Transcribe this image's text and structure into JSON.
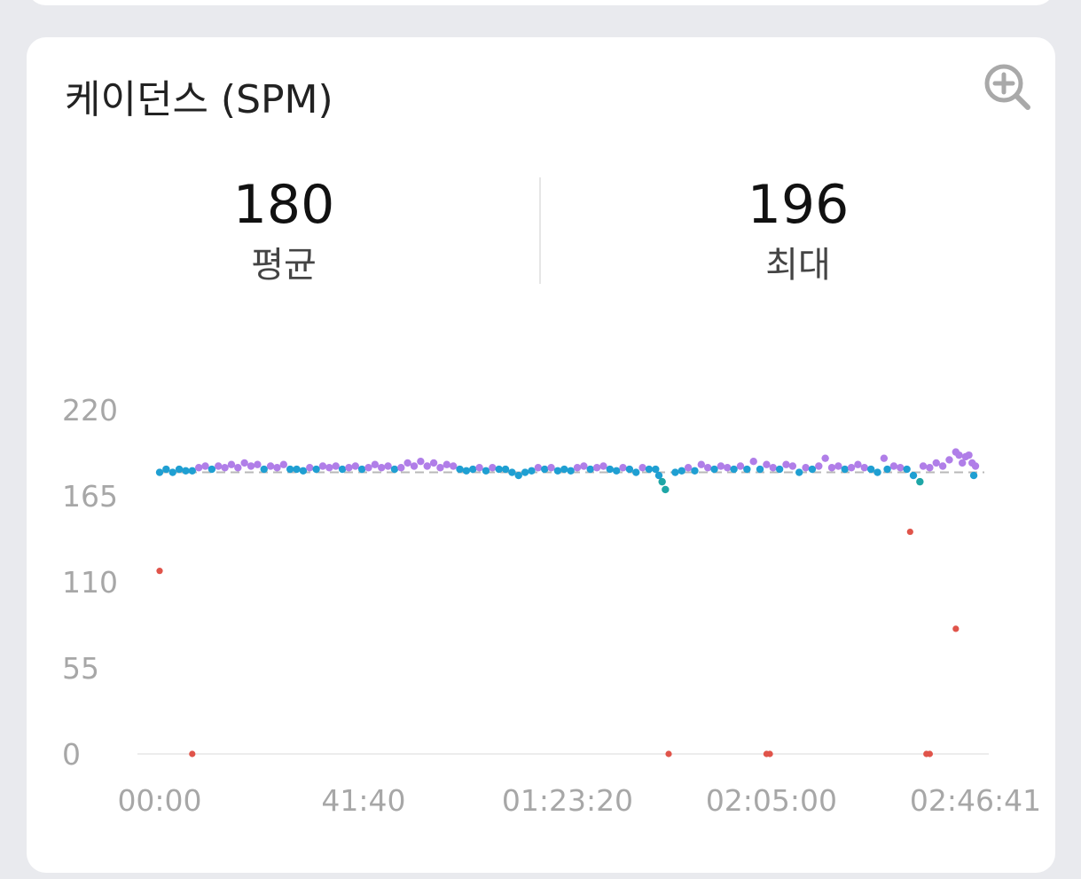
{
  "card": {
    "title": "케이던스 (SPM)",
    "zoom_icon": "zoom-in-icon"
  },
  "stats": {
    "average_value": "180",
    "average_label": "평균",
    "max_value": "196",
    "max_label": "최대"
  },
  "colors": {
    "purple": "#b07ee8",
    "teal": "#1ea6a6",
    "blue": "#1f9fd2",
    "red": "#e0544a",
    "avg_line": "#b8b8b8",
    "axis": "#a7a7a7"
  },
  "chart_data": {
    "type": "scatter",
    "x_tick_labels": [
      "00:00",
      "41:40",
      "01:23:20",
      "02:05:00",
      "02:46:41"
    ],
    "x_tick_seconds": [
      0,
      2500,
      5000,
      7500,
      10001
    ],
    "y_tick_labels": [
      "220",
      "165",
      "110",
      "55",
      "0"
    ],
    "y_ticks": [
      220,
      165,
      110,
      55,
      0
    ],
    "ylim": [
      0,
      220
    ],
    "xlim_seconds": [
      0,
      10001
    ],
    "average_line": 180,
    "grid": false,
    "outliers": [
      {
        "t": 0,
        "v": 117
      },
      {
        "t": 400,
        "v": 0
      },
      {
        "t": 6240,
        "v": 0
      },
      {
        "t": 7440,
        "v": 0
      },
      {
        "t": 7480,
        "v": 0
      },
      {
        "t": 9200,
        "v": 142
      },
      {
        "t": 9400,
        "v": 0
      },
      {
        "t": 9440,
        "v": 0
      },
      {
        "t": 9760,
        "v": 80
      }
    ],
    "main_series_summary": "dense points near 178-190 SPM across the whole run",
    "main_points": [
      {
        "t": 0,
        "v": 180
      },
      {
        "t": 80,
        "v": 182
      },
      {
        "t": 160,
        "v": 180
      },
      {
        "t": 240,
        "v": 182
      },
      {
        "t": 320,
        "v": 181
      },
      {
        "t": 400,
        "v": 181
      },
      {
        "t": 480,
        "v": 183
      },
      {
        "t": 560,
        "v": 184
      },
      {
        "t": 640,
        "v": 182
      },
      {
        "t": 720,
        "v": 184
      },
      {
        "t": 800,
        "v": 183
      },
      {
        "t": 880,
        "v": 185
      },
      {
        "t": 960,
        "v": 183
      },
      {
        "t": 1040,
        "v": 186
      },
      {
        "t": 1120,
        "v": 184
      },
      {
        "t": 1200,
        "v": 185
      },
      {
        "t": 1280,
        "v": 182
      },
      {
        "t": 1360,
        "v": 184
      },
      {
        "t": 1440,
        "v": 183
      },
      {
        "t": 1520,
        "v": 185
      },
      {
        "t": 1600,
        "v": 182
      },
      {
        "t": 1680,
        "v": 182
      },
      {
        "t": 1760,
        "v": 181
      },
      {
        "t": 1840,
        "v": 183
      },
      {
        "t": 1920,
        "v": 182
      },
      {
        "t": 2000,
        "v": 184
      },
      {
        "t": 2080,
        "v": 183
      },
      {
        "t": 2160,
        "v": 184
      },
      {
        "t": 2240,
        "v": 182
      },
      {
        "t": 2320,
        "v": 183
      },
      {
        "t": 2400,
        "v": 184
      },
      {
        "t": 2480,
        "v": 182
      },
      {
        "t": 2560,
        "v": 183
      },
      {
        "t": 2640,
        "v": 185
      },
      {
        "t": 2720,
        "v": 183
      },
      {
        "t": 2800,
        "v": 184
      },
      {
        "t": 2880,
        "v": 182
      },
      {
        "t": 2960,
        "v": 183
      },
      {
        "t": 3040,
        "v": 186
      },
      {
        "t": 3120,
        "v": 184
      },
      {
        "t": 3200,
        "v": 187
      },
      {
        "t": 3280,
        "v": 184
      },
      {
        "t": 3360,
        "v": 186
      },
      {
        "t": 3440,
        "v": 183
      },
      {
        "t": 3520,
        "v": 185
      },
      {
        "t": 3600,
        "v": 184
      },
      {
        "t": 3680,
        "v": 182
      },
      {
        "t": 3760,
        "v": 181
      },
      {
        "t": 3840,
        "v": 182
      },
      {
        "t": 3920,
        "v": 183
      },
      {
        "t": 4000,
        "v": 181
      },
      {
        "t": 4080,
        "v": 183
      },
      {
        "t": 4160,
        "v": 182
      },
      {
        "t": 4240,
        "v": 182
      },
      {
        "t": 4320,
        "v": 180
      },
      {
        "t": 4400,
        "v": 178
      },
      {
        "t": 4480,
        "v": 180
      },
      {
        "t": 4560,
        "v": 181
      },
      {
        "t": 4640,
        "v": 183
      },
      {
        "t": 4720,
        "v": 182
      },
      {
        "t": 4800,
        "v": 183
      },
      {
        "t": 4880,
        "v": 181
      },
      {
        "t": 4960,
        "v": 182
      },
      {
        "t": 5040,
        "v": 181
      },
      {
        "t": 5120,
        "v": 183
      },
      {
        "t": 5200,
        "v": 184
      },
      {
        "t": 5280,
        "v": 182
      },
      {
        "t": 5360,
        "v": 183
      },
      {
        "t": 5440,
        "v": 184
      },
      {
        "t": 5520,
        "v": 182
      },
      {
        "t": 5600,
        "v": 181
      },
      {
        "t": 5680,
        "v": 183
      },
      {
        "t": 5760,
        "v": 182
      },
      {
        "t": 5840,
        "v": 180
      },
      {
        "t": 5920,
        "v": 183
      },
      {
        "t": 6000,
        "v": 182
      },
      {
        "t": 6080,
        "v": 182
      },
      {
        "t": 6120,
        "v": 178
      },
      {
        "t": 6160,
        "v": 174
      },
      {
        "t": 6200,
        "v": 169
      },
      {
        "t": 6320,
        "v": 180
      },
      {
        "t": 6400,
        "v": 181
      },
      {
        "t": 6480,
        "v": 183
      },
      {
        "t": 6560,
        "v": 181
      },
      {
        "t": 6640,
        "v": 185
      },
      {
        "t": 6720,
        "v": 183
      },
      {
        "t": 6800,
        "v": 182
      },
      {
        "t": 6880,
        "v": 184
      },
      {
        "t": 6960,
        "v": 183
      },
      {
        "t": 7040,
        "v": 182
      },
      {
        "t": 7120,
        "v": 184
      },
      {
        "t": 7200,
        "v": 182
      },
      {
        "t": 7280,
        "v": 187
      },
      {
        "t": 7360,
        "v": 182
      },
      {
        "t": 7440,
        "v": 185
      },
      {
        "t": 7520,
        "v": 183
      },
      {
        "t": 7600,
        "v": 182
      },
      {
        "t": 7680,
        "v": 185
      },
      {
        "t": 7760,
        "v": 184
      },
      {
        "t": 7840,
        "v": 180
      },
      {
        "t": 7920,
        "v": 183
      },
      {
        "t": 8000,
        "v": 182
      },
      {
        "t": 8080,
        "v": 184
      },
      {
        "t": 8160,
        "v": 189
      },
      {
        "t": 8240,
        "v": 183
      },
      {
        "t": 8320,
        "v": 184
      },
      {
        "t": 8400,
        "v": 182
      },
      {
        "t": 8480,
        "v": 183
      },
      {
        "t": 8560,
        "v": 185
      },
      {
        "t": 8640,
        "v": 183
      },
      {
        "t": 8720,
        "v": 182
      },
      {
        "t": 8800,
        "v": 180
      },
      {
        "t": 8880,
        "v": 189
      },
      {
        "t": 8920,
        "v": 182
      },
      {
        "t": 9000,
        "v": 184
      },
      {
        "t": 9080,
        "v": 183
      },
      {
        "t": 9160,
        "v": 182
      },
      {
        "t": 9240,
        "v": 178
      },
      {
        "t": 9320,
        "v": 174
      },
      {
        "t": 9360,
        "v": 184
      },
      {
        "t": 9440,
        "v": 183
      },
      {
        "t": 9520,
        "v": 186
      },
      {
        "t": 9600,
        "v": 184
      },
      {
        "t": 9680,
        "v": 188
      },
      {
        "t": 9760,
        "v": 193
      },
      {
        "t": 9800,
        "v": 191
      },
      {
        "t": 9840,
        "v": 186
      },
      {
        "t": 9880,
        "v": 190
      },
      {
        "t": 9920,
        "v": 191
      },
      {
        "t": 9960,
        "v": 186
      },
      {
        "t": 10001,
        "v": 184
      },
      {
        "t": 9980,
        "v": 178
      }
    ]
  }
}
